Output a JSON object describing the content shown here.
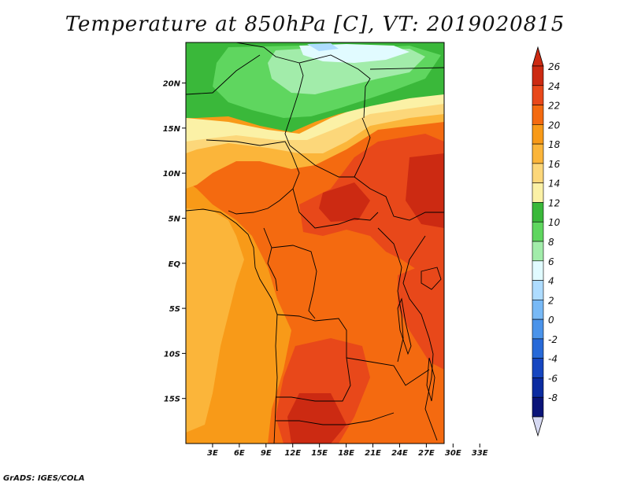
{
  "title": "Temperature at 850hPa [C], VT: 2019020815",
  "credit": "GrADS: IGES/COLA",
  "map": {
    "lat_range": [
      -20,
      24.5
    ],
    "lon_range": [
      0,
      29
    ],
    "lat_ticks": [
      {
        "value": 20,
        "label": "20N"
      },
      {
        "value": 15,
        "label": "15N"
      },
      {
        "value": 10,
        "label": "10N"
      },
      {
        "value": 5,
        "label": "5N"
      },
      {
        "value": 0,
        "label": "EQ"
      },
      {
        "value": -5,
        "label": "5S"
      },
      {
        "value": -10,
        "label": "10S"
      },
      {
        "value": -15,
        "label": "15S"
      }
    ],
    "lon_ticks": [
      {
        "value": 3,
        "label": "3E"
      },
      {
        "value": 6,
        "label": "6E"
      },
      {
        "value": 9,
        "label": "9E"
      },
      {
        "value": 12,
        "label": "12E"
      },
      {
        "value": 15,
        "label": "15E"
      },
      {
        "value": 18,
        "label": "18E"
      },
      {
        "value": 21,
        "label": "21E"
      },
      {
        "value": 24,
        "label": "24E"
      },
      {
        "value": 27,
        "label": "27E"
      },
      {
        "value": 30,
        "label": "30E"
      },
      {
        "value": 33,
        "label": "33E"
      }
    ]
  },
  "colorbar": {
    "levels": [
      {
        "label": "26",
        "color": "#cc2a12"
      },
      {
        "label": "24",
        "color": "#e8481a"
      },
      {
        "label": "22",
        "color": "#f46a10"
      },
      {
        "label": "20",
        "color": "#f89a18"
      },
      {
        "label": "18",
        "color": "#fbb53a"
      },
      {
        "label": "16",
        "color": "#fcd77a"
      },
      {
        "label": "14",
        "color": "#fbf1a6"
      },
      {
        "label": "12",
        "color": "#3ab83a"
      },
      {
        "label": "10",
        "color": "#5fd65f"
      },
      {
        "label": "8",
        "color": "#a2ecaa"
      },
      {
        "label": "6",
        "color": "#e1fbff"
      },
      {
        "label": "4",
        "color": "#aedcff"
      },
      {
        "label": "2",
        "color": "#78b9f6"
      },
      {
        "label": "0",
        "color": "#4a93ea"
      },
      {
        "label": "-2",
        "color": "#2769d8"
      },
      {
        "label": "-4",
        "color": "#1646c0"
      },
      {
        "label": "-6",
        "color": "#0b2ba0"
      },
      {
        "label": "-8",
        "color": "#0a1478"
      }
    ],
    "top_arrow_color": "#cc2a12",
    "bottom_arrow_color": "#d6d9f2"
  }
}
